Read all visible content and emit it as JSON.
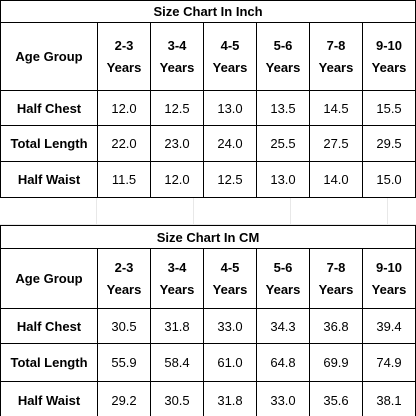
{
  "tables": [
    {
      "title": "Size Chart In Inch",
      "corner": "Age Group",
      "columns": [
        {
          "range": "2-3",
          "unit": "Years"
        },
        {
          "range": "3-4",
          "unit": "Years"
        },
        {
          "range": "4-5",
          "unit": "Years"
        },
        {
          "range": "5-6",
          "unit": "Years"
        },
        {
          "range": "7-8",
          "unit": "Years"
        },
        {
          "range": "9-10",
          "unit": "Years"
        }
      ],
      "rows": [
        {
          "label": "Half Chest",
          "values": [
            "12.0",
            "12.5",
            "13.0",
            "13.5",
            "14.5",
            "15.5"
          ]
        },
        {
          "label": "Total Length",
          "values": [
            "22.0",
            "23.0",
            "24.0",
            "25.5",
            "27.5",
            "29.5"
          ]
        },
        {
          "label": "Half Waist",
          "values": [
            "11.5",
            "12.0",
            "12.5",
            "13.0",
            "14.0",
            "15.0"
          ]
        }
      ]
    },
    {
      "title": "Size Chart In CM",
      "corner": "Age Group",
      "columns": [
        {
          "range": "2-3",
          "unit": "Years"
        },
        {
          "range": "3-4",
          "unit": "Years"
        },
        {
          "range": "4-5",
          "unit": "Years"
        },
        {
          "range": "5-6",
          "unit": "Years"
        },
        {
          "range": "7-8",
          "unit": "Years"
        },
        {
          "range": "9-10",
          "unit": "Years"
        }
      ],
      "rows": [
        {
          "label": "Half Chest",
          "values": [
            "30.5",
            "31.8",
            "33.0",
            "34.3",
            "36.8",
            "39.4"
          ]
        },
        {
          "label": "Total Length",
          "values": [
            "55.9",
            "58.4",
            "61.0",
            "64.8",
            "69.9",
            "74.9"
          ]
        },
        {
          "label": "Half Waist",
          "values": [
            "29.2",
            "30.5",
            "31.8",
            "33.0",
            "35.6",
            "38.1"
          ]
        }
      ]
    }
  ]
}
